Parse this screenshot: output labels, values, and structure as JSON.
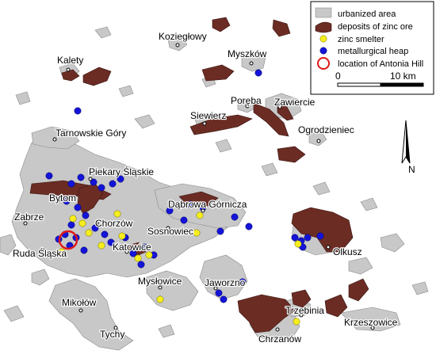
{
  "colors": {
    "urban_fill": "#c8c8c8",
    "urban_stroke": "#8a8a8a",
    "zinc_ore": "#6b2c24",
    "zinc_smelter": "#f5ee1e",
    "metallurgical_heap": "#1414d8",
    "antonia_hill": "#e01818",
    "background": "#ffffff"
  },
  "legend": {
    "urbanized_area": "urbanized area",
    "deposits_of_zinc_ore": "deposits of zinc ore",
    "zinc_smelter": "zinc smelter",
    "metallurgical_heap": "metallurgical heap",
    "location_of_antonia_hill": "location of Antonia Hill"
  },
  "scale_bar": {
    "start_label": "0",
    "end_label": "10 km"
  },
  "north_arrow": {
    "label": "N"
  },
  "towns": {
    "koziegłowy": "Koziegłowy",
    "kalety": "Kalety",
    "myszkow": "Myszków",
    "poreba": "Poręba",
    "zawiercie": "Zawiercie",
    "siewierz": "Siewierz",
    "ogrodzieniec": "Ogrodzieniec",
    "tarnowskie_gory": "Tarnowskie Góry",
    "piekary_slaskie": "Piekary Śląskie",
    "bytom": "Bytom",
    "dabrowa_gornicza": "Dąbrowa Górnicza",
    "zabrze": "Zabrze",
    "chorzow": "Chorzów",
    "sosnowiec": "Sosnowiec",
    "ruda_slaska": "Ruda Śląska",
    "katowice": "Katowice",
    "olkusz": "Olkusz",
    "myslowice": "Mysłowice",
    "jaworzno": "Jaworzno",
    "mikolow": "Mikołów",
    "trzebinia": "Trzebinia",
    "krzeszowice": "Krzeszowice",
    "tychy": "Tychy",
    "chrzanow": "Chrzanów"
  }
}
